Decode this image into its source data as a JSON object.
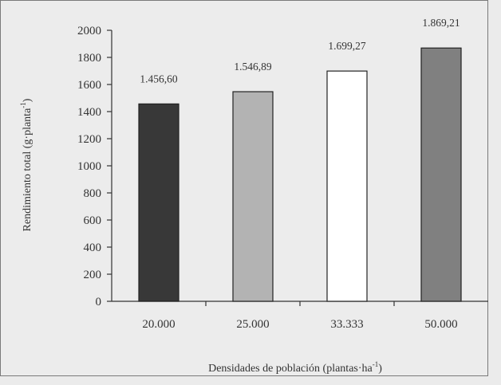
{
  "chart_data": {
    "type": "bar",
    "categories": [
      "20.000",
      "25.000",
      "33.333",
      "50.000"
    ],
    "values": [
      1456.6,
      1546.89,
      1699.27,
      1869.21
    ],
    "value_labels": [
      "1.456,60",
      "1.546,89",
      "1.699,27",
      "1.869,21"
    ],
    "bar_colors": [
      "#383838",
      "#b3b3b3",
      "#ffffff",
      "#808080"
    ],
    "xlabel_main": "Densidades de población (plantas·ha",
    "xlabel_sup": "-1",
    "xlabel_end": ")",
    "ylabel_main": "Rendimiento total (g·planta",
    "ylabel_sup": "-1",
    "ylabel_end": ")",
    "ylim": [
      0,
      2000
    ],
    "yticks": [
      "0",
      "200",
      "400",
      "600",
      "800",
      "1000",
      "1200",
      "1400",
      "1600",
      "1800",
      "2000"
    ],
    "grid": false,
    "legend": "none"
  }
}
